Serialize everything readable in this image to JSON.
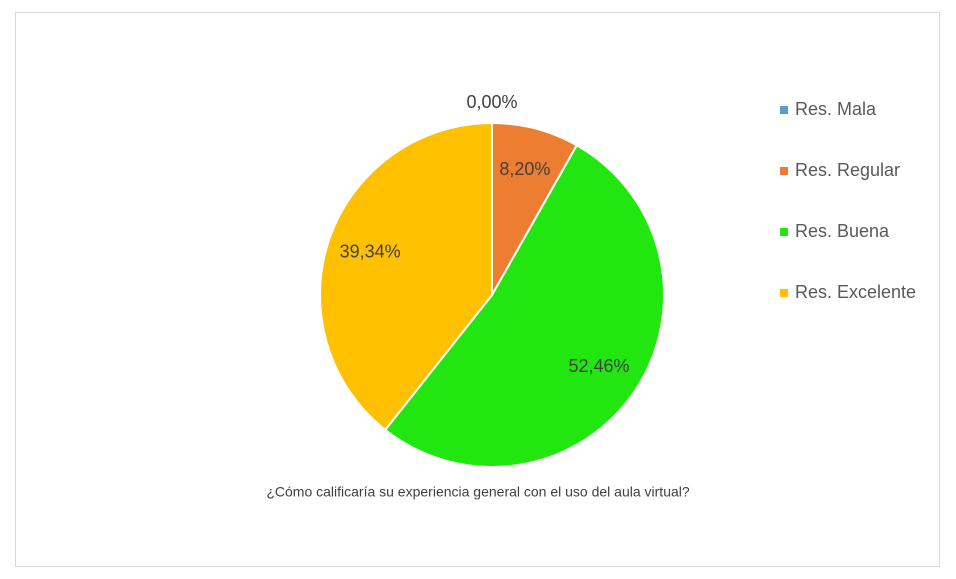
{
  "chart_data": {
    "type": "pie",
    "title": "¿Cómo calificaría su experiencia general con el uso del aula virtual?",
    "categories": [
      "Res. Mala",
      "Res. Regular",
      "Res. Buena",
      "Res. Excelente"
    ],
    "values": [
      0,
      8.2,
      52.46,
      39.34
    ],
    "value_labels": [
      "0,00%",
      "8,20%",
      "52,46%",
      "39,34%"
    ],
    "colors": [
      "#5b9bd5",
      "#ed7d31",
      "#22e60f",
      "#ffc000"
    ],
    "legend": "right"
  }
}
